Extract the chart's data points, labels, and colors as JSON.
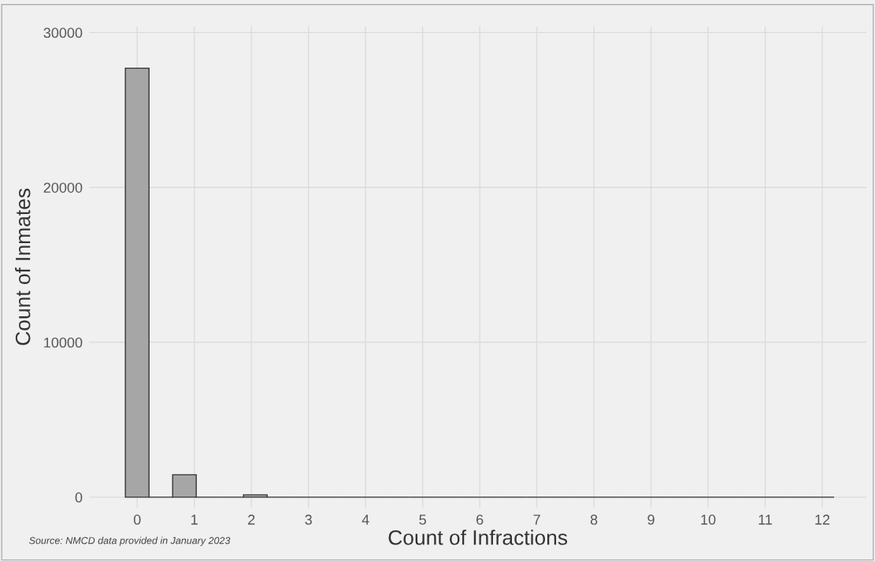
{
  "chart_data": {
    "type": "histogram",
    "bins": [
      -0.207,
      0.207,
      0.621,
      1.034,
      1.448,
      1.862,
      2.276,
      2.69,
      3.103,
      3.517,
      3.931,
      4.345,
      4.759,
      5.172,
      5.586,
      6.0,
      6.414,
      6.828,
      7.241,
      7.655,
      8.069,
      8.483,
      8.897,
      9.31,
      9.724,
      10.138,
      10.552,
      10.966,
      11.379,
      11.793,
      12.207
    ],
    "values": [
      27700,
      0,
      1450,
      0,
      0,
      150,
      0,
      0,
      0,
      0,
      0,
      0,
      0,
      0,
      0,
      0,
      0,
      0,
      0,
      0,
      0,
      0,
      0,
      0,
      0,
      0,
      0,
      0,
      0,
      0
    ],
    "color": "#a6a6a6",
    "xlabel": "Count of Infractions",
    "ylabel": "Count of Inmates",
    "xlim": [
      -0.84,
      12.77
    ],
    "ylim": [
      -680,
      30400
    ],
    "xticks": [
      0,
      1,
      2,
      3,
      4,
      5,
      6,
      7,
      8,
      9,
      10,
      11,
      12
    ],
    "yticks": [
      0,
      10000,
      20000,
      30000
    ],
    "grid": true,
    "annotations": [
      "Source: NMCD data provided in January 2023"
    ]
  }
}
